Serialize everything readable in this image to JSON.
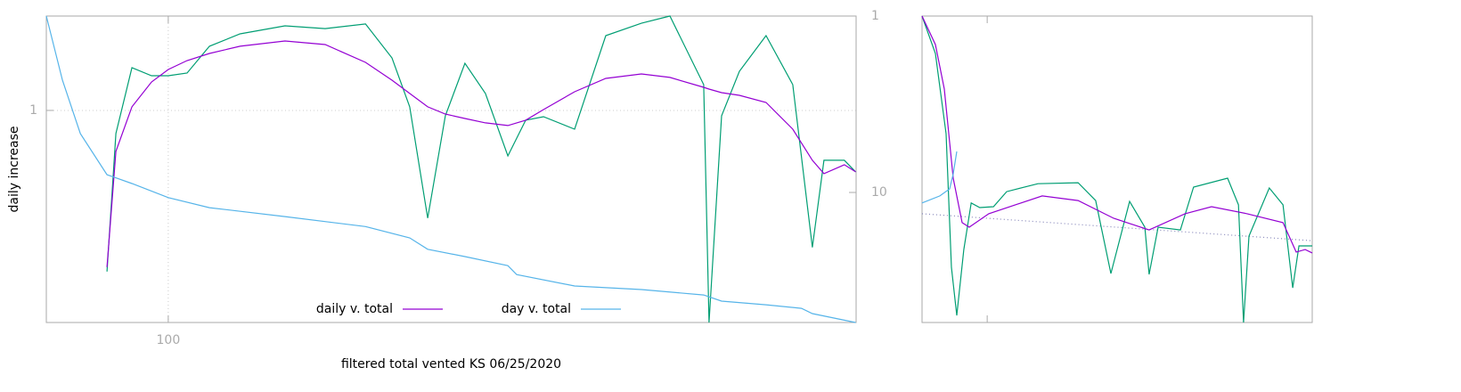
{
  "chart_data": [
    {
      "type": "line",
      "xlabel": "filtered total vented KS 06/25/2020",
      "ylabel": "daily increase",
      "xlog": true,
      "ylog": true,
      "y2log": true,
      "xlim": [
        52,
        4000
      ],
      "ylim": [
        0.042,
        4.1
      ],
      "y2lim": [
        54.6,
        1
      ],
      "xticks": [
        100
      ],
      "yticks": [
        1
      ],
      "y2ticks": [
        1,
        10
      ],
      "grid": true,
      "legend": "bottom center",
      "series": [
        {
          "color": "#009e73",
          "x": [
            72,
            75.5,
            82.3,
            91.4,
            100,
            110.6,
            124.7,
            147,
            187,
            232,
            288,
            332,
            365,
            402,
            442,
            491,
            548,
            618,
            680,
            748,
            884,
            1045,
            1265,
            1474,
            1766,
            1818,
            1944,
            2139,
            2468,
            2848,
            3163,
            3366,
            3756,
            3990
          ],
          "values": [
            0.09,
            0.708,
            1.893,
            1.68,
            1.68,
            1.749,
            2.61,
            3.14,
            3.54,
            3.4,
            3.64,
            2.193,
            1.055,
            0.2,
            0.923,
            2.024,
            1.288,
            0.507,
            0.864,
            0.911,
            0.756,
            3.06,
            3.68,
            4.1,
            1.471,
            0.042,
            0.923,
            1.796,
            3.06,
            1.471,
            0.129,
            0.475,
            0.475,
            0.399
          ]
        },
        {
          "name": "daily v. total",
          "color": "#9400d3",
          "x": [
            72,
            75.5,
            82.3,
            91.4,
            100,
            110.6,
            124.7,
            147,
            187,
            232,
            288,
            332,
            365,
            402,
            442,
            491,
            548,
            618,
            680,
            748,
            884,
            1045,
            1265,
            1474,
            1766,
            1818,
            1944,
            2139,
            2468,
            2848,
            3163,
            3366,
            3756,
            3990
          ],
          "values": [
            0.0961,
            0.542,
            1.055,
            1.531,
            1.845,
            2.107,
            2.344,
            2.61,
            2.825,
            2.677,
            2.051,
            1.572,
            1.288,
            1.055,
            0.948,
            0.887,
            0.83,
            0.798,
            0.864,
            1.013,
            1.322,
            1.615,
            1.726,
            1.637,
            1.413,
            1.376,
            1.305,
            1.254,
            1.127,
            0.756,
            0.475,
            0.389,
            0.444,
            0.399
          ]
        },
        {
          "name": "day v. total",
          "color": "#56b4e9",
          "axis": "y2",
          "x": [
            52,
            56.7,
            62.4,
            72,
            82.3,
            100,
            124.7,
            187,
            288,
            365,
            402,
            491,
            618,
            648,
            884,
            1265,
            1766,
            1944,
            2468,
            2985,
            3163,
            3990
          ],
          "values": [
            1,
            2.31,
            4.64,
            7.93,
            8.9,
            10.7,
            12.2,
            13.7,
            15.6,
            18.1,
            21.0,
            23.1,
            26.0,
            29.2,
            33.9,
            35.5,
            38.1,
            41.3,
            43.3,
            45.4,
            48.6,
            54.6
          ]
        }
      ]
    },
    {
      "type": "line",
      "xlim": [
        0,
        100
      ],
      "ylim": [
        0,
        100
      ],
      "xticks": [
        16.7
      ],
      "series": [
        {
          "color": "#8888bb",
          "dashed": true,
          "x": [
            0,
            100
          ],
          "values": [
            35.5,
            26.7
          ]
        },
        {
          "color": "#009e73",
          "x": [
            0,
            3.42,
            6.16,
            7.53,
            8.9,
            10.7,
            12.6,
            14.8,
            18.3,
            21.7,
            29.7,
            40.0,
            44.5,
            48.4,
            53.2,
            57.1,
            58.2,
            60.5,
            66.2,
            69.6,
            78.3,
            81.1,
            82.4,
            83.8,
            89.0,
            92.5,
            95.0,
            96.6,
            100
          ],
          "values": [
            100,
            87.8,
            61.6,
            18.0,
            2.3,
            23.8,
            39.0,
            37.5,
            37.8,
            42.7,
            45.3,
            45.6,
            39.8,
            16.0,
            39.5,
            31.1,
            15.7,
            31.1,
            30.2,
            44.2,
            47.1,
            38.4,
            0,
            28.2,
            43.9,
            38.4,
            11.3,
            25.0,
            25.0
          ]
        },
        {
          "color": "#9400d3",
          "x": [
            0,
            3.42,
            5.71,
            7.99,
            10.27,
            12.1,
            17.1,
            30.8,
            40.0,
            49.1,
            58.2,
            67.4,
            74.2,
            83.3,
            92.5,
            95.9,
            98.2,
            100
          ],
          "values": [
            100,
            90.7,
            76.2,
            47.1,
            32.6,
            31.1,
            35.5,
            41.3,
            39.8,
            34.0,
            30.2,
            35.5,
            37.8,
            35.5,
            32.6,
            23.0,
            23.8,
            22.7
          ]
        },
        {
          "color": "#56b4e9",
          "x": [
            0,
            4.57,
            7.08,
            7.99,
            8.9
          ],
          "values": [
            39.0,
            41.3,
            43.6,
            48.5,
            55.8
          ]
        }
      ]
    }
  ]
}
